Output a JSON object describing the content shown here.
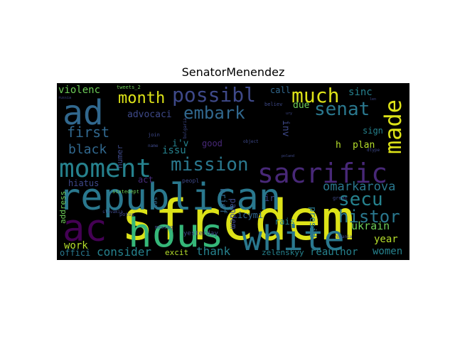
{
  "title": "SenatorMenendez",
  "background_color": "#000000",
  "words": [
    {
      "text": "sfrcdem",
      "color": "#dde318"
    },
    {
      "text": "republican",
      "color": "#2a788e"
    },
    {
      "text": "hous",
      "color": "#35b779"
    },
    {
      "text": "white",
      "color": "#2a788e"
    },
    {
      "text": "ad",
      "color": "#31688e"
    },
    {
      "text": "ac",
      "color": "#440154"
    },
    {
      "text": "moment",
      "color": "#26828e"
    },
    {
      "text": "sacrific",
      "color": "#482878"
    },
    {
      "text": "made",
      "color": "#dde318"
    },
    {
      "text": "mission",
      "color": "#2a788e"
    },
    {
      "text": "possibl",
      "color": "#3e4989"
    },
    {
      "text": "much",
      "color": "#dde318"
    },
    {
      "text": "month",
      "color": "#dde318"
    },
    {
      "text": "embark",
      "color": "#31688e"
    },
    {
      "text": "senat",
      "color": "#2a788e"
    },
    {
      "text": "secu",
      "color": "#26828e"
    },
    {
      "text": "histor",
      "color": "#2a788e"
    },
    {
      "text": "omarkarova",
      "color": "#2a788e"
    },
    {
      "text": "first",
      "color": "#31688e"
    },
    {
      "text": "black",
      "color": "#31688e"
    },
    {
      "text": "violenc",
      "color": "#6ece58"
    },
    {
      "text": "advocaci",
      "color": "#3e4989"
    },
    {
      "text": "consider",
      "color": "#26828e"
    },
    {
      "text": "thank",
      "color": "#26828e"
    },
    {
      "text": "ukrain",
      "color": "#6ece58"
    },
    {
      "text": "year",
      "color": "#b5de2b"
    },
    {
      "text": "women",
      "color": "#26828e"
    },
    {
      "text": "work",
      "color": "#b5de2b"
    },
    {
      "text": "offici",
      "color": "#2a788e"
    },
    {
      "text": "excit",
      "color": "#b5de2b"
    },
    {
      "text": "reauthor",
      "color": "#26828e"
    },
    {
      "text": "zelenskyy",
      "color": "#26828e"
    },
    {
      "text": "hiatus",
      "color": "#3e4989"
    },
    {
      "text": "address",
      "color": "#6ece58"
    },
    {
      "text": "issu",
      "color": "#26828e"
    },
    {
      "text": "i'v",
      "color": "#26828e"
    },
    {
      "text": "good",
      "color": "#482878"
    },
    {
      "text": "sinc",
      "color": "#26828e"
    },
    {
      "text": "call",
      "color": "#31688e"
    },
    {
      "text": "due",
      "color": "#6ece58"
    },
    {
      "text": "inv",
      "color": "#3e4989"
    },
    {
      "text": "sign",
      "color": "#26828e"
    },
    {
      "text": "plan",
      "color": "#b5de2b"
    },
    {
      "text": "h",
      "color": "#b5de2b"
    },
    {
      "text": "act",
      "color": "#472c7a"
    },
    {
      "text": "numer",
      "color": "#3e4989"
    },
    {
      "text": "brief",
      "color": "#31688e"
    },
    {
      "text": "pandem",
      "color": "#3e4989"
    },
    {
      "text": "icymi",
      "color": "#31688e"
    },
    {
      "text": "rais",
      "color": "#26828e"
    },
    {
      "text": "presid",
      "color": "#2a788e"
    },
    {
      "text": "ir",
      "color": "#3e4989"
    },
    {
      "text": "yesterday",
      "color": "#3e4989"
    },
    {
      "text": "peopl",
      "color": "#3e4989"
    },
    {
      "text": "see",
      "color": "#31688e"
    },
    {
      "text": "potus",
      "color": "#3e4989"
    },
    {
      "text": "messag",
      "color": "#3e4989"
    },
    {
      "text": "great",
      "color": "#3e4989"
    },
    {
      "text": "romania",
      "color": "#3e4989"
    },
    {
      "text": "tweets_2",
      "color": "#6ece58"
    },
    {
      "text": "join",
      "color": "#3e4989"
    },
    {
      "text": "name",
      "color": "#3e4989"
    },
    {
      "text": "bulgaria",
      "color": "#3e4989"
    },
    {
      "text": "believ",
      "color": "#3e4989"
    },
    {
      "text": "object",
      "color": "#3e4989"
    },
    {
      "text": "statedept",
      "color": "#6ece58"
    },
    {
      "text": "slovakia",
      "color": "#3e4989"
    },
    {
      "text": "dtype",
      "color": "#3e4989"
    },
    {
      "text": "russia",
      "color": "#3e4989"
    },
    {
      "text": "len",
      "color": "#3e4989"
    },
    {
      "text": "ury",
      "color": "#3e4989"
    },
    {
      "text": "poland",
      "color": "#3e4989"
    }
  ]
}
